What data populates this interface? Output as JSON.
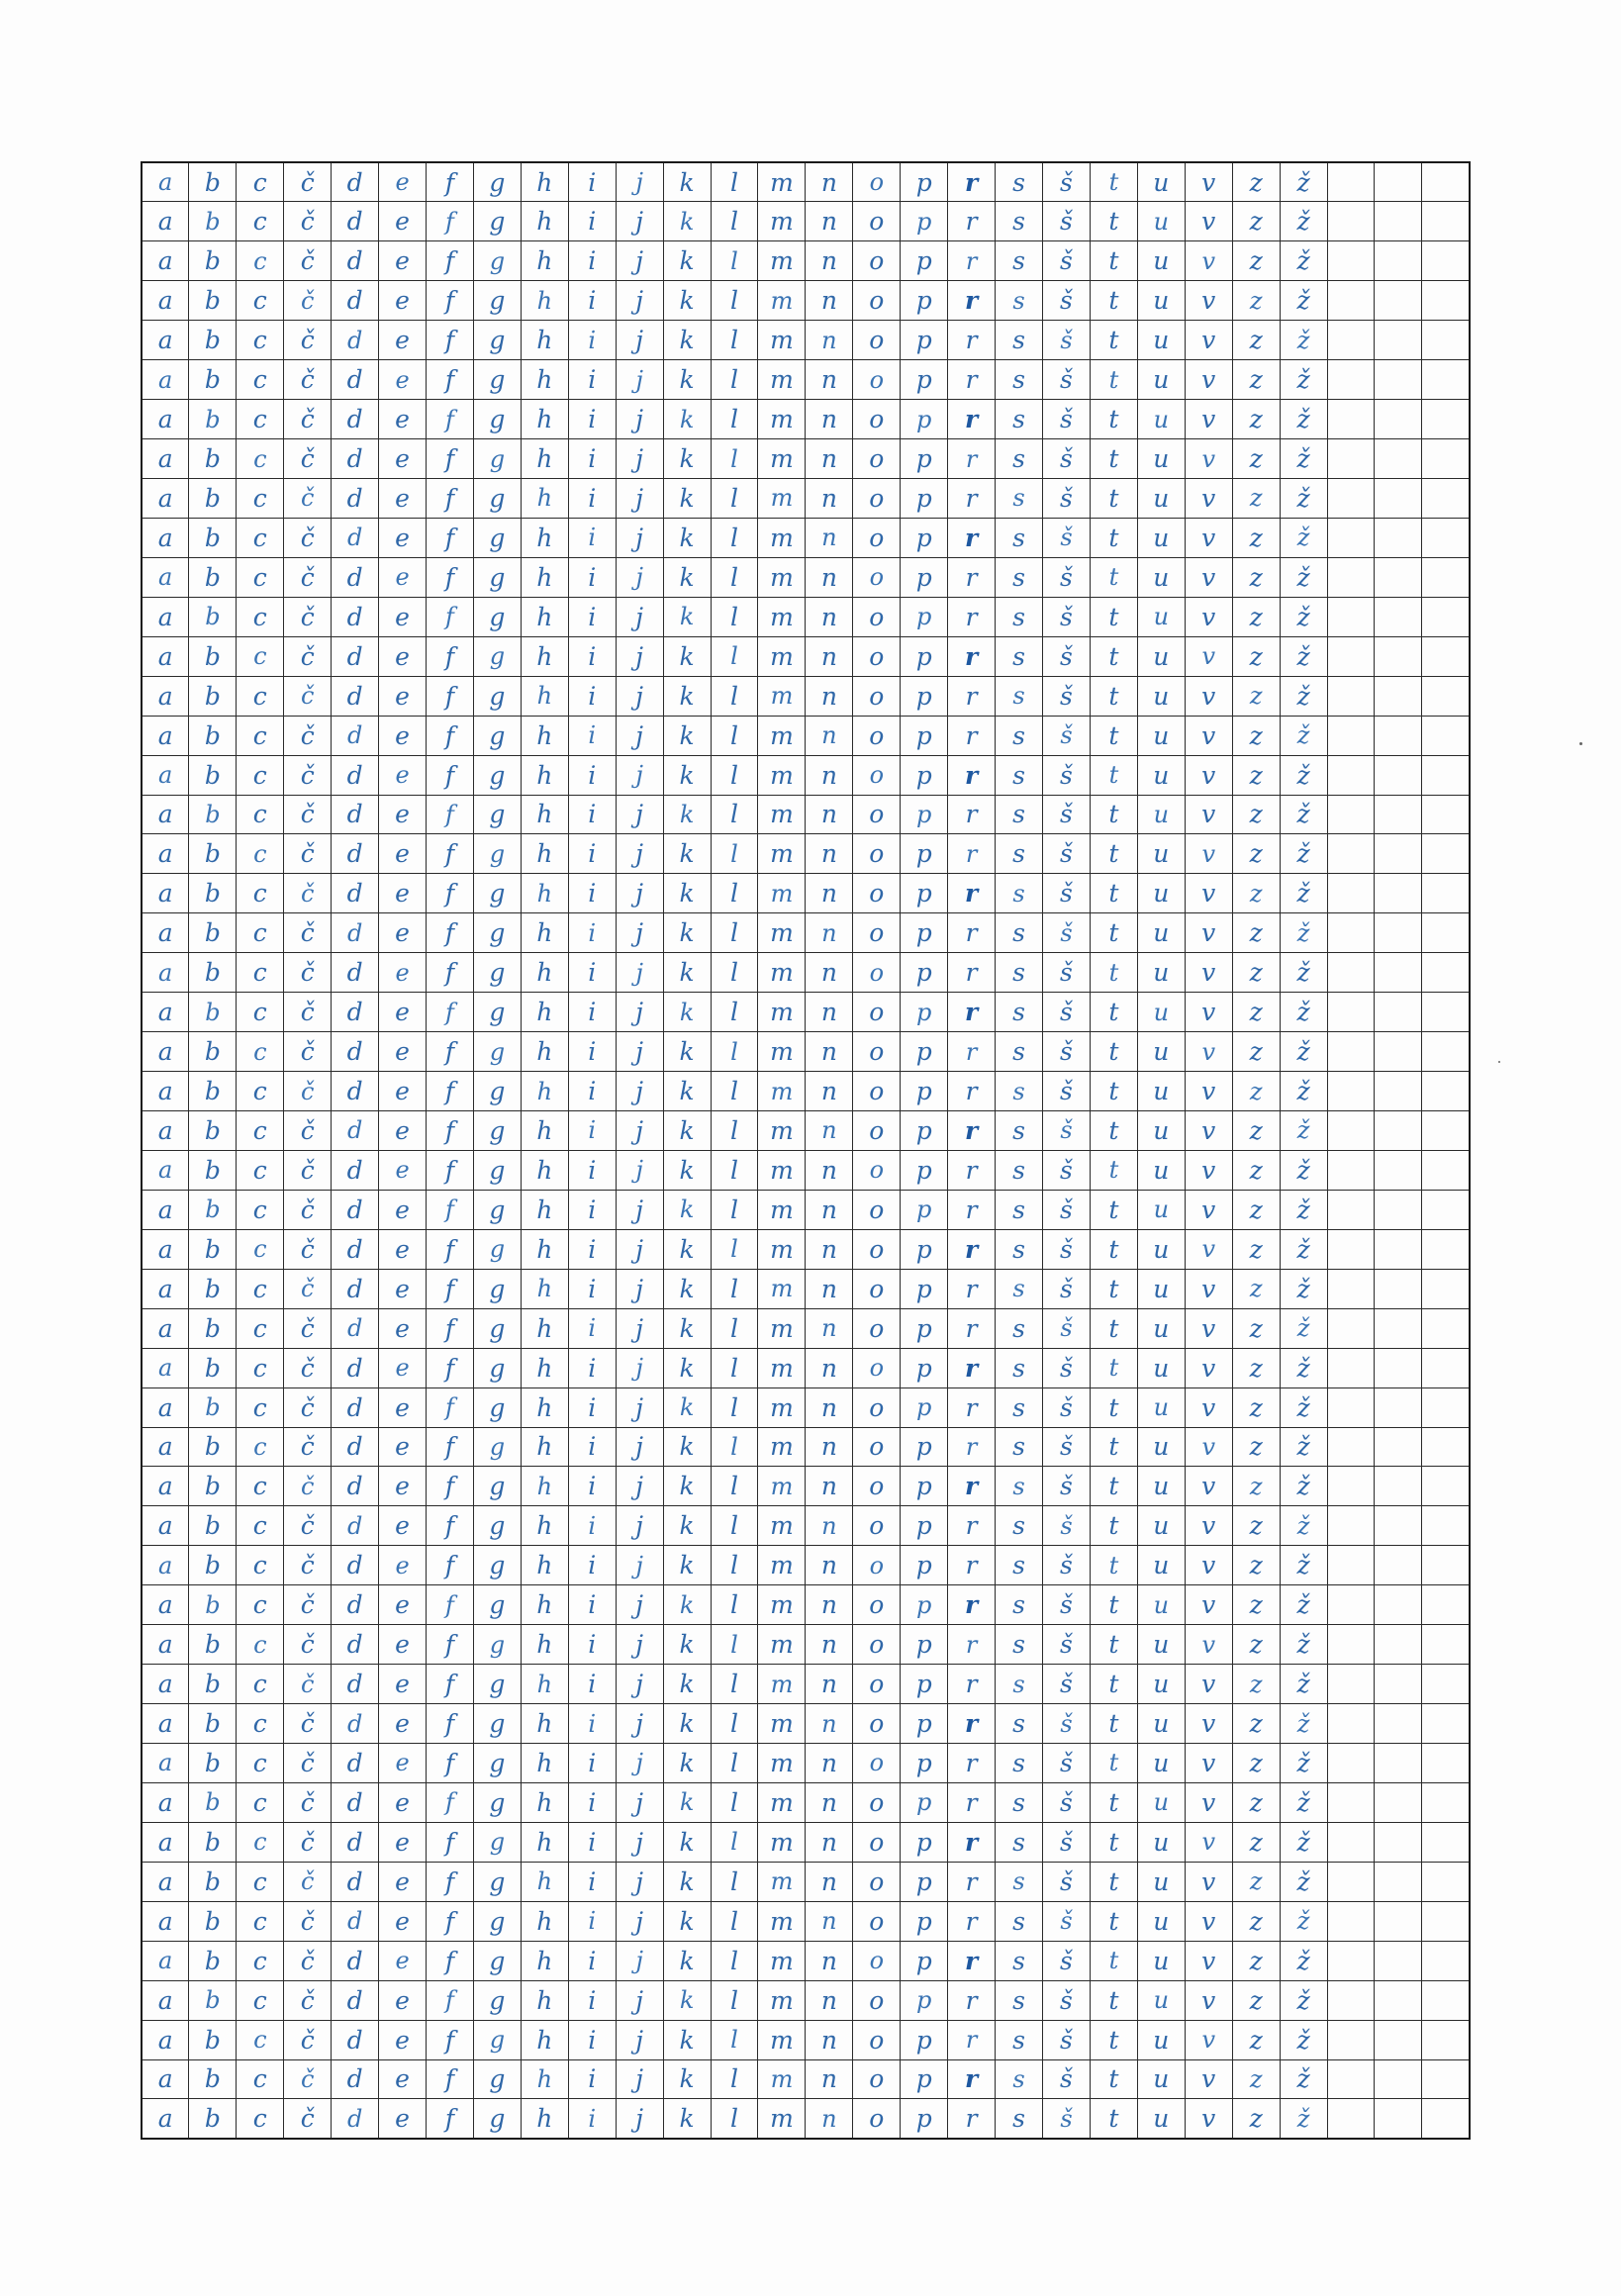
{
  "sheet": {
    "ink_color": "#2f67a8",
    "grid_color": "#2a2a2a",
    "paper_color": "#fdfdfd"
  },
  "alphabet": [
    "a",
    "b",
    "c",
    "č",
    "d",
    "e",
    "f",
    "g",
    "h",
    "i",
    "j",
    "k",
    "l",
    "m",
    "n",
    "o",
    "p",
    "r",
    "s",
    "š",
    "t",
    "u",
    "v",
    "z",
    "ž"
  ],
  "grid": {
    "columns": 28,
    "rows": 50,
    "letter_columns": 25
  }
}
